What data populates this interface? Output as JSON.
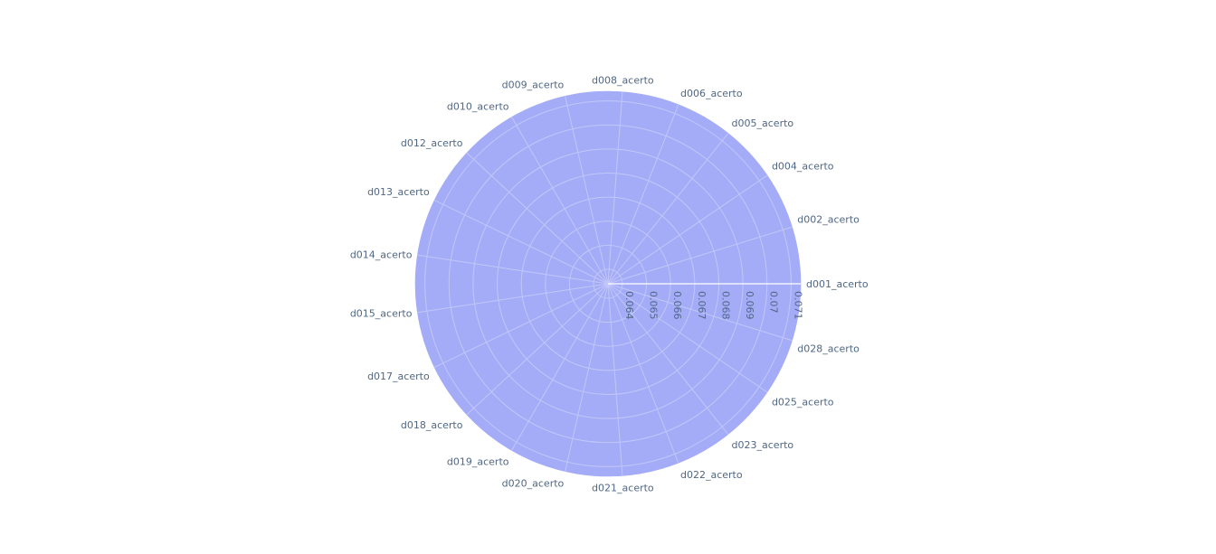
{
  "chart_data": {
    "type": "polar",
    "title": "",
    "categories": [
      "d001_acerto",
      "d002_acerto",
      "d004_acerto",
      "d005_acerto",
      "d006_acerto",
      "d008_acerto",
      "d009_acerto",
      "d010_acerto",
      "d012_acerto",
      "d013_acerto",
      "d014_acerto",
      "d015_acerto",
      "d017_acerto",
      "d018_acerto",
      "d019_acerto",
      "d020_acerto",
      "d021_acerto",
      "d022_acerto",
      "d023_acerto",
      "d025_acerto",
      "d028_acerto"
    ],
    "series": [
      {
        "values": [
          0.0714,
          0.0714,
          0.0714,
          0.0714,
          0.0714,
          0.0714,
          0.0714,
          0.0714,
          0.0714,
          0.0714,
          0.0714,
          0.0714,
          0.0714,
          0.0714,
          0.0714,
          0.0714,
          0.0714,
          0.0714,
          0.0714,
          0.0714,
          0.0714
        ],
        "color": "#a4acf7"
      }
    ],
    "radial_ticks": [
      "0.064",
      "0.065",
      "0.066",
      "0.067",
      "0.068",
      "0.069",
      "0.07",
      "0.071"
    ],
    "radial_tick_values": [
      0.064,
      0.065,
      0.066,
      0.067,
      0.068,
      0.069,
      0.07,
      0.071
    ],
    "radial_range": [
      0.0634,
      0.0714
    ],
    "grid": true,
    "legend": "none",
    "colors": {
      "fill": "#a4acf7",
      "grid": "#c2c7f8",
      "label": "#506784",
      "radial_axis_line": "#ffffff"
    }
  }
}
